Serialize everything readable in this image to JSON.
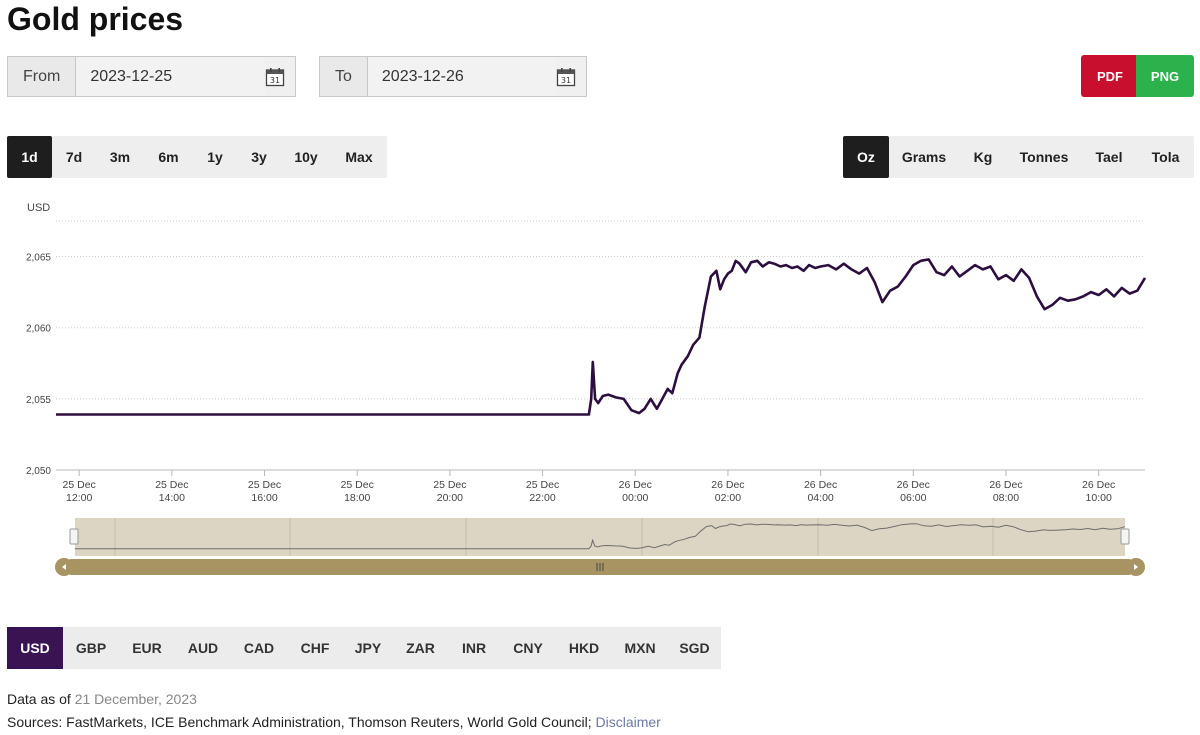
{
  "page": {
    "title": "Gold prices"
  },
  "dates": {
    "from_label": "From",
    "from_value": "2023-12-25",
    "to_label": "To",
    "to_value": "2023-12-26",
    "calendar_icon_text": "31"
  },
  "export": {
    "pdf_label": "PDF",
    "png_label": "PNG",
    "pdf_color": "#c8102e",
    "png_color": "#2bb24c"
  },
  "ranges": {
    "items": [
      "1d",
      "7d",
      "3m",
      "6m",
      "1y",
      "3y",
      "10y",
      "Max"
    ],
    "active": "1d"
  },
  "units": {
    "items": [
      "Oz",
      "Grams",
      "Kg",
      "Tonnes",
      "Tael",
      "Tola"
    ],
    "active": "Oz"
  },
  "currencies": {
    "items": [
      "USD",
      "GBP",
      "EUR",
      "AUD",
      "CAD",
      "CHF",
      "JPY",
      "ZAR",
      "INR",
      "CNY",
      "HKD",
      "MXN",
      "SGD"
    ],
    "active": "USD"
  },
  "footer": {
    "data_as_of_label": "Data as of",
    "data_as_of_date": "21 December, 2023",
    "sources_text": "Sources: FastMarkets, ICE Benchmark Administration, Thomson Reuters, World Gold Council;",
    "disclaimer": "Disclaimer"
  },
  "colors": {
    "line": "#2d0f3f",
    "active_currency": "#3a1352",
    "navigator_bg": "#ddd5c3",
    "scrollbar": "#a89462"
  },
  "chart_data": {
    "type": "line",
    "title": "",
    "ylabel": "USD",
    "xlabel": "",
    "ylim": [
      2050,
      2067.5
    ],
    "yticks": [
      2050,
      2055,
      2060,
      2065
    ],
    "ytick_labels": [
      "2,050",
      "2,055",
      "2,060",
      "2,065"
    ],
    "xlim": [
      11.5,
      11.0
    ],
    "xticks": [
      {
        "t": 12,
        "date": "25 Dec",
        "time": "12:00"
      },
      {
        "t": 14,
        "date": "25 Dec",
        "time": "14:00"
      },
      {
        "t": 16,
        "date": "25 Dec",
        "time": "16:00"
      },
      {
        "t": 18,
        "date": "25 Dec",
        "time": "18:00"
      },
      {
        "t": 20,
        "date": "25 Dec",
        "time": "20:00"
      },
      {
        "t": 22,
        "date": "25 Dec",
        "time": "22:00"
      },
      {
        "t": 24,
        "date": "26 Dec",
        "time": "00:00"
      },
      {
        "t": 26,
        "date": "26 Dec",
        "time": "02:00"
      },
      {
        "t": 28,
        "date": "26 Dec",
        "time": "04:00"
      },
      {
        "t": 30,
        "date": "26 Dec",
        "time": "06:00"
      },
      {
        "t": 32,
        "date": "26 Dec",
        "time": "08:00"
      },
      {
        "t": 34,
        "date": "26 Dec",
        "time": "10:00"
      }
    ],
    "grid": true,
    "legend": "none",
    "series": [
      {
        "x": [
          "25 Dec 11:30",
          "25 Dec 23:00",
          "25 Dec 23:03",
          "25 Dec 23:05",
          "25 Dec 23:08",
          "25 Dec 23:12",
          "25 Dec 23:18",
          "25 Dec 23:25",
          "25 Dec 23:35",
          "25 Dec 23:45",
          "25 Dec 23:55",
          "26 Dec 00:00",
          "26 Dec 00:05",
          "26 Dec 00:12",
          "26 Dec 00:20",
          "26 Dec 00:28",
          "26 Dec 00:35",
          "26 Dec 00:42",
          "26 Dec 00:48",
          "26 Dec 00:55",
          "26 Dec 01:00",
          "26 Dec 01:08",
          "26 Dec 01:15",
          "26 Dec 01:23",
          "26 Dec 01:30",
          "26 Dec 01:38",
          "26 Dec 01:45",
          "26 Dec 01:50",
          "26 Dec 01:55",
          "26 Dec 02:00",
          "26 Dec 02:05",
          "26 Dec 02:10",
          "26 Dec 02:15",
          "26 Dec 02:23",
          "26 Dec 02:30",
          "26 Dec 02:38",
          "26 Dec 02:45",
          "26 Dec 02:53",
          "26 Dec 03:00",
          "26 Dec 03:08",
          "26 Dec 03:15",
          "26 Dec 03:23",
          "26 Dec 03:30",
          "26 Dec 03:38",
          "26 Dec 03:45",
          "26 Dec 03:53",
          "26 Dec 04:00",
          "26 Dec 04:10",
          "26 Dec 04:20",
          "26 Dec 04:30",
          "26 Dec 04:40",
          "26 Dec 04:50",
          "26 Dec 05:00",
          "26 Dec 05:10",
          "26 Dec 05:20",
          "26 Dec 05:30",
          "26 Dec 05:40",
          "26 Dec 05:50",
          "26 Dec 06:00",
          "26 Dec 06:10",
          "26 Dec 06:20",
          "26 Dec 06:30",
          "26 Dec 06:40",
          "26 Dec 06:50",
          "26 Dec 07:00",
          "26 Dec 07:10",
          "26 Dec 07:20",
          "26 Dec 07:30",
          "26 Dec 07:40",
          "26 Dec 07:50",
          "26 Dec 08:00",
          "26 Dec 08:10",
          "26 Dec 08:20",
          "26 Dec 08:30",
          "26 Dec 08:40",
          "26 Dec 08:50",
          "26 Dec 09:00",
          "26 Dec 09:10",
          "26 Dec 09:20",
          "26 Dec 09:30",
          "26 Dec 09:40",
          "26 Dec 09:50",
          "26 Dec 10:00",
          "26 Dec 10:10",
          "26 Dec 10:20",
          "26 Dec 10:30",
          "26 Dec 10:40",
          "26 Dec 10:50",
          "26 Dec 11:00"
        ],
        "y": [
          2053.9,
          2053.9,
          2055.0,
          2057.6,
          2055.0,
          2054.7,
          2055.2,
          2055.3,
          2055.1,
          2055.0,
          2054.2,
          2054.1,
          2054.0,
          2054.3,
          2055.0,
          2054.3,
          2055.0,
          2055.7,
          2055.4,
          2056.8,
          2057.4,
          2058.0,
          2058.8,
          2059.3,
          2061.5,
          2063.6,
          2064.0,
          2062.7,
          2063.4,
          2063.8,
          2064.0,
          2064.7,
          2064.5,
          2063.9,
          2064.6,
          2064.7,
          2064.3,
          2064.6,
          2064.5,
          2064.3,
          2064.4,
          2064.2,
          2064.3,
          2064.0,
          2064.4,
          2064.2,
          2064.3,
          2064.4,
          2064.1,
          2064.5,
          2064.1,
          2063.8,
          2064.2,
          2063.2,
          2061.8,
          2062.6,
          2062.9,
          2063.6,
          2064.4,
          2064.7,
          2064.8,
          2063.9,
          2063.7,
          2064.3,
          2063.6,
          2064.0,
          2064.4,
          2064.1,
          2064.3,
          2063.4,
          2063.7,
          2063.3,
          2064.1,
          2063.5,
          2062.2,
          2061.3,
          2061.6,
          2062.1,
          2061.9,
          2062.0,
          2062.2,
          2062.5,
          2062.3,
          2062.7,
          2062.2,
          2062.8,
          2062.4,
          2062.6,
          2063.5
        ]
      }
    ]
  }
}
